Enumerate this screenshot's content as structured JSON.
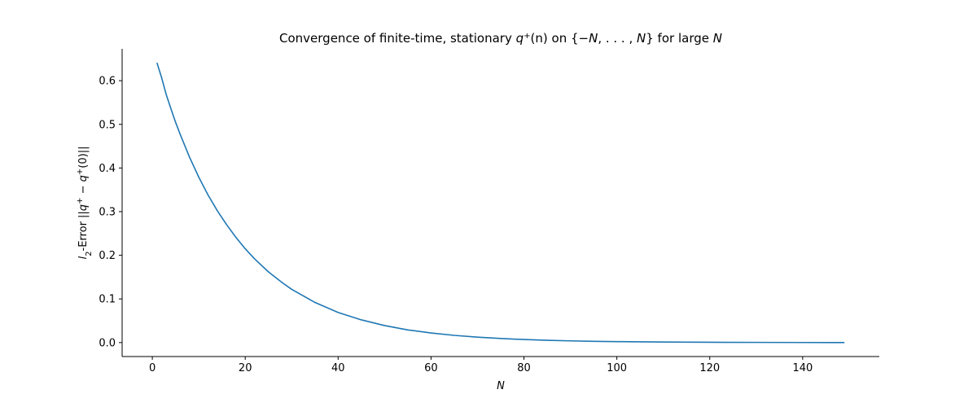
{
  "chart_data": {
    "type": "line",
    "title": {
      "prefix": "Convergence of finite-time, stationary ",
      "q": "q",
      "plus": "+",
      "n_paren": "(n)",
      "on": " on {−",
      "N1": "N",
      "mid": ", . . . , ",
      "N2": "N",
      "end": "} for large ",
      "N3": "N"
    },
    "xlabel": "N",
    "ylabel": {
      "l": "l",
      "sub": "2",
      "rest": "-Error ||",
      "q1": "q",
      "plus1": "+",
      "minus": " − ",
      "q2": "q",
      "plus2": "+",
      "tail": "(0)||"
    },
    "xlim": [
      -6.5,
      156.5
    ],
    "ylim": [
      -0.032,
      0.673
    ],
    "xticks": [
      0,
      20,
      40,
      60,
      80,
      100,
      120,
      140
    ],
    "xtick_labels": [
      "0",
      "20",
      "40",
      "60",
      "80",
      "100",
      "120",
      "140"
    ],
    "yticks": [
      0.0,
      0.1,
      0.2,
      0.3,
      0.4,
      0.5,
      0.6
    ],
    "ytick_labels": [
      "0.0",
      "0.1",
      "0.2",
      "0.3",
      "0.4",
      "0.5",
      "0.6"
    ],
    "grid": false,
    "series": [
      {
        "color": "#1f77b4",
        "x": [
          1,
          2,
          3,
          4,
          5,
          6,
          8,
          10,
          12,
          14,
          16,
          18,
          20,
          22,
          25,
          28,
          30,
          35,
          40,
          45,
          50,
          55,
          60,
          65,
          70,
          75,
          80,
          85,
          90,
          95,
          100,
          110,
          120,
          130,
          140,
          149
        ],
        "y": [
          0.641,
          0.607,
          0.568,
          0.536,
          0.505,
          0.477,
          0.425,
          0.379,
          0.338,
          0.302,
          0.27,
          0.241,
          0.215,
          0.192,
          0.162,
          0.137,
          0.122,
          0.092,
          0.069,
          0.052,
          0.039,
          0.029,
          0.022,
          0.0165,
          0.0124,
          0.0093,
          0.007,
          0.0052,
          0.0039,
          0.0029,
          0.0022,
          0.0012,
          0.0007,
          0.0004,
          0.0002,
          0.0001
        ]
      }
    ]
  }
}
